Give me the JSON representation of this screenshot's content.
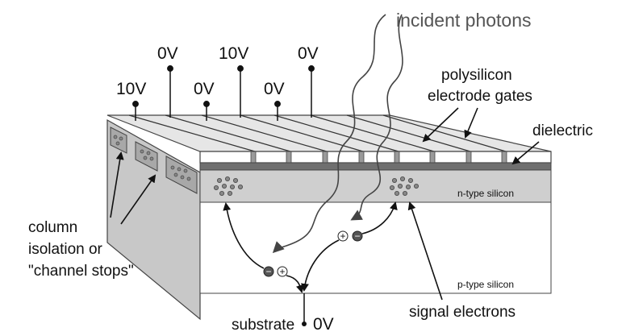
{
  "labels": {
    "incident_photons": "incident photons",
    "polysilicon_line1": "polysilicon",
    "polysilicon_line2": "electrode gates",
    "dielectric": "dielectric",
    "n_type": "n-type silicon",
    "p_type": "p-type silicon",
    "column_line1": "column",
    "column_line2": "isolation or",
    "column_line3": "\"channel stops\"",
    "substrate": "substrate",
    "substrate_voltage": "0V",
    "signal_electrons": "signal electrons"
  },
  "gate_voltages": [
    "10V",
    "0V",
    "0V",
    "10V",
    "0V",
    "0V"
  ],
  "carriers": {
    "electron": "−",
    "hole": "+"
  },
  "colors": {
    "face_top_white": "#ffffff",
    "dielectric": "#6f6f6f",
    "n_type": "#cfcfcf",
    "p_type_front": "#ffffff",
    "side_face": "#c8c8c8",
    "electrode_top": "#e6e6e6",
    "carrier_dark": "#555555",
    "photon_line": "#444444"
  }
}
